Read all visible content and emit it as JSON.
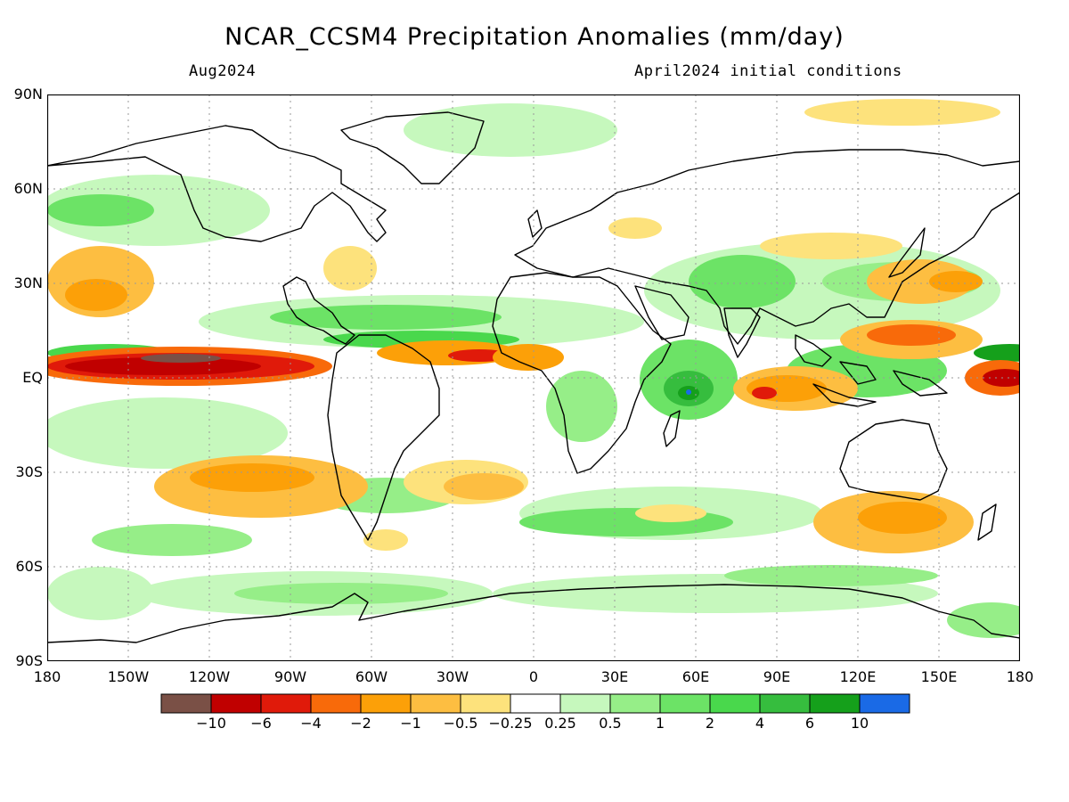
{
  "title": "NCAR_CCSM4 Precipitation Anomalies (mm/day)",
  "subtitle_left": "Aug2024",
  "subtitle_right": "April2024 initial conditions",
  "lat_ticks": [
    "90N",
    "60N",
    "30N",
    "EQ",
    "30S",
    "60S",
    "90S"
  ],
  "lon_ticks": [
    "180",
    "150W",
    "120W",
    "90W",
    "60W",
    "30W",
    "0",
    "30E",
    "60E",
    "90E",
    "120E",
    "150E",
    "180"
  ],
  "colorbar": {
    "colors": [
      "#7a5046",
      "#c00000",
      "#e01a0a",
      "#f86a0a",
      "#fca008",
      "#fdbe41",
      "#fde27c",
      "#ffffff",
      "#c6f8bd",
      "#96ee88",
      "#6ce366",
      "#49d84c",
      "#36bd3e",
      "#15a01b",
      "#1a6ae6"
    ],
    "labels": [
      "−10",
      "−6",
      "−4",
      "−2",
      "−1",
      "−0.5",
      "−0.25",
      "0.25",
      "0.5",
      "1",
      "2",
      "4",
      "6",
      "10"
    ]
  }
}
